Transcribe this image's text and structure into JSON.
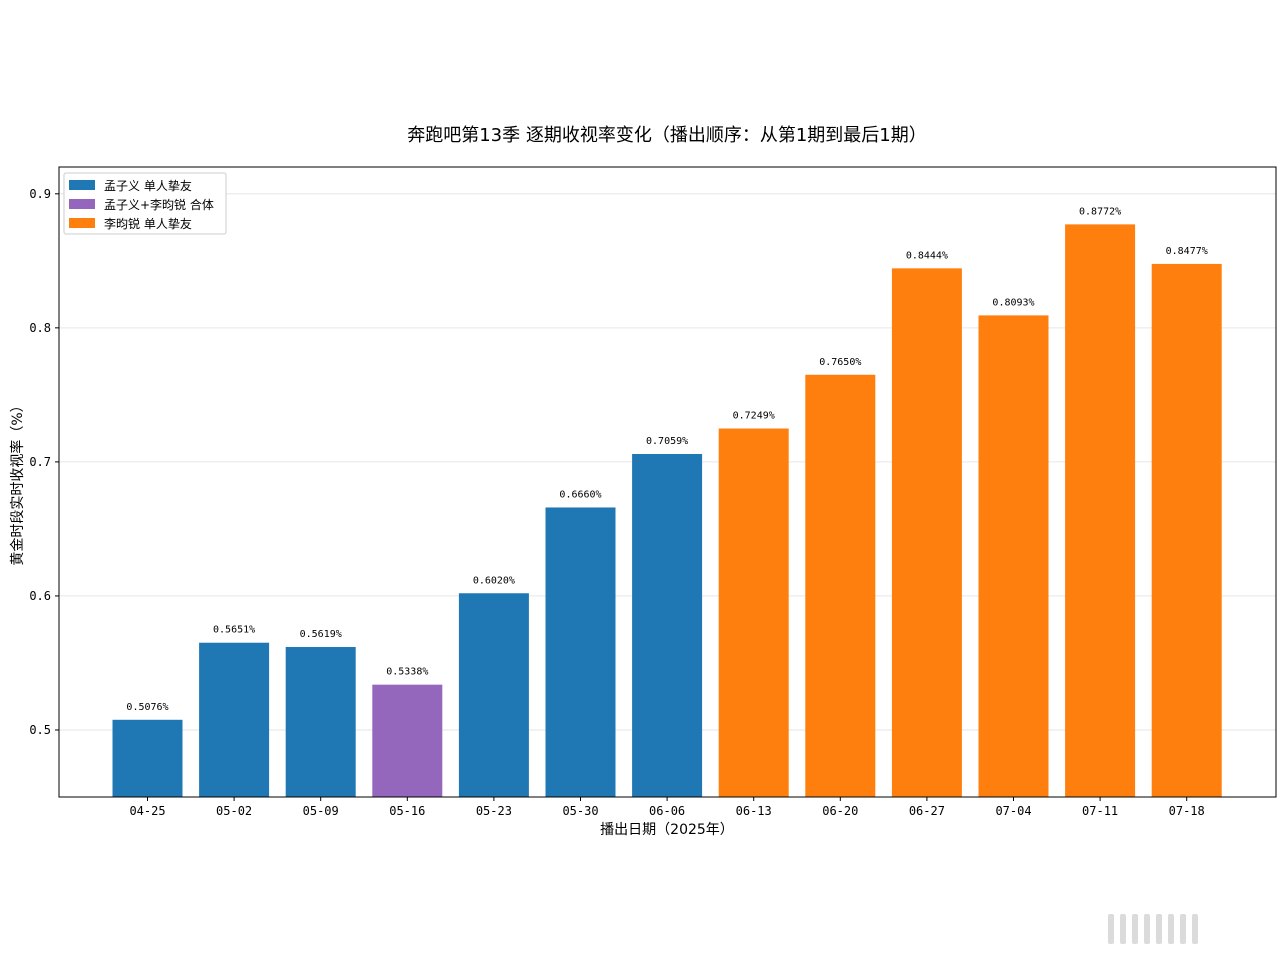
{
  "chart_data": {
    "type": "bar",
    "title": "奔跑吧第13季 逐期收视率变化（播出顺序：从第1期到最后1期）",
    "xlabel": "播出日期（2025年）",
    "ylabel": "黄金时段实时收视率（%）",
    "ylim": [
      0.45,
      0.92
    ],
    "yticks": [
      0.5,
      0.6,
      0.7,
      0.8,
      0.9
    ],
    "ytick_labels": [
      "0.5",
      "0.6",
      "0.7",
      "0.8",
      "0.9"
    ],
    "grid": "horizontal",
    "legend_position": "top-left",
    "categories": [
      "04-25",
      "05-02",
      "05-09",
      "05-16",
      "05-23",
      "05-30",
      "06-06",
      "06-13",
      "06-20",
      "06-27",
      "07-04",
      "07-11",
      "07-18"
    ],
    "values": [
      0.5076,
      0.5651,
      0.5619,
      0.5338,
      0.602,
      0.666,
      0.7059,
      0.7249,
      0.765,
      0.8444,
      0.8093,
      0.8772,
      0.8477
    ],
    "value_labels": [
      "0.5076%",
      "0.5651%",
      "0.5619%",
      "0.5338%",
      "0.6020%",
      "0.6660%",
      "0.7059%",
      "0.7249%",
      "0.7650%",
      "0.8444%",
      "0.8093%",
      "0.8772%",
      "0.8477%"
    ],
    "bar_groups": [
      0,
      0,
      0,
      1,
      0,
      0,
      0,
      2,
      2,
      2,
      2,
      2,
      2
    ],
    "legend": [
      {
        "name": "孟子义 单人挚友",
        "color": "#1f77b4"
      },
      {
        "name": "孟子义+李昀锐 合体",
        "color": "#9467bd"
      },
      {
        "name": "李昀锐 单人挚友",
        "color": "#ff7f0e"
      }
    ]
  }
}
